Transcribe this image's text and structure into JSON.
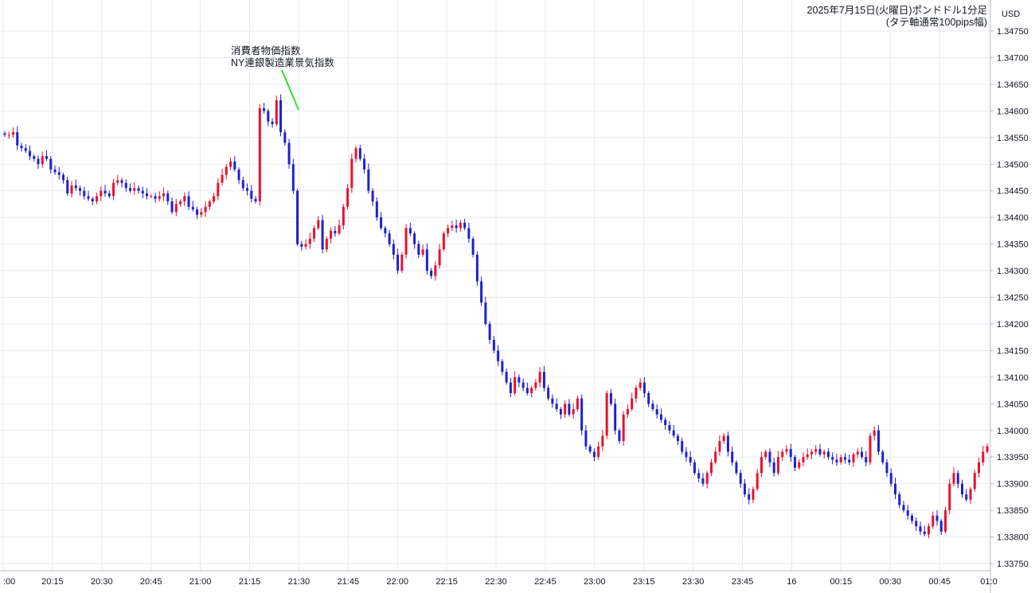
{
  "chart_data": {
    "type": "candlestick",
    "title_line1": "2025年7月15日(火曜日)ポンドドル1分足",
    "title_line2": "(タテ軸通常100pips幅)",
    "currency_label": "USD",
    "ylim": [
      1.3374,
      1.34775
    ],
    "y_ticks": [
      "1.34750",
      "1.34700",
      "1.34650",
      "1.34600",
      "1.34550",
      "1.34500",
      "1.34450",
      "1.34400",
      "1.34350",
      "1.34300",
      "1.34250",
      "1.34200",
      "1.34150",
      "1.34100",
      "1.34050",
      "1.34000",
      "1.33950",
      "1.33900",
      "1.33850",
      "1.33800",
      "1.33750"
    ],
    "x_ticks": [
      ":00",
      "20:15",
      "20:30",
      "20:45",
      "21:00",
      "21:15",
      "21:30",
      "21:45",
      "22:00",
      "22:15",
      "22:30",
      "22:45",
      "23:00",
      "23:15",
      "23:30",
      "23:45",
      "16",
      "00:15",
      "00:30",
      "00:45",
      "01:0"
    ],
    "annotation": {
      "line1": "消費者物価指数",
      "line2": "NY連銀製造業景気指数"
    },
    "up_color": "#e8112d",
    "down_color": "#1f1fd1",
    "close_path": [
      1.34555,
      1.34555,
      1.3456,
      1.34535,
      1.3453,
      1.34525,
      1.34515,
      1.3451,
      1.345,
      1.34515,
      1.3451,
      1.3449,
      1.34485,
      1.3448,
      1.3447,
      1.34445,
      1.3446,
      1.34455,
      1.3445,
      1.3444,
      1.34435,
      1.3443,
      1.3444,
      1.3445,
      1.34445,
      1.3444,
      1.34465,
      1.3447,
      1.34465,
      1.34455,
      1.3445,
      1.34455,
      1.3445,
      1.34445,
      1.3444,
      1.3444,
      1.34435,
      1.3444,
      1.34445,
      1.3443,
      1.3441,
      1.34425,
      1.3443,
      1.3444,
      1.3442,
      1.34415,
      1.34405,
      1.3441,
      1.3442,
      1.3443,
      1.3444,
      1.34465,
      1.3448,
      1.34495,
      1.34505,
      1.3449,
      1.3447,
      1.34455,
      1.3445,
      1.34435,
      1.3443,
      1.34605,
      1.346,
      1.3458,
      1.34575,
      1.3462,
      1.3456,
      1.3454,
      1.345,
      1.3445,
      1.3435,
      1.34345,
      1.3435,
      1.3436,
      1.3438,
      1.34395,
      1.3434,
      1.3436,
      1.34375,
      1.3437,
      1.34385,
      1.3442,
      1.34455,
      1.3451,
      1.3453,
      1.3451,
      1.3449,
      1.3445,
      1.3443,
      1.344,
      1.3438,
      1.3437,
      1.3435,
      1.3433,
      1.343,
      1.3433,
      1.3438,
      1.3437,
      1.3435,
      1.3433,
      1.3434,
      1.343,
      1.3429,
      1.3431,
      1.3434,
      1.3437,
      1.3438,
      1.34385,
      1.3438,
      1.3439,
      1.3438,
      1.3436,
      1.3433,
      1.3428,
      1.3424,
      1.342,
      1.3417,
      1.3415,
      1.3413,
      1.3411,
      1.3409,
      1.3407,
      1.341,
      1.3409,
      1.3408,
      1.3407,
      1.3408,
      1.3409,
      1.3411,
      1.3408,
      1.3406,
      1.3405,
      1.3404,
      1.3403,
      1.3405,
      1.3403,
      1.3404,
      1.3406,
      1.34,
      1.3397,
      1.3396,
      1.3395,
      1.3397,
      1.3399,
      1.3407,
      1.3405,
      1.34,
      1.3398,
      1.3403,
      1.3404,
      1.3406,
      1.3408,
      1.3409,
      1.3407,
      1.3405,
      1.3404,
      1.3403,
      1.3402,
      1.3401,
      1.34,
      1.3399,
      1.3398,
      1.3396,
      1.3395,
      1.3394,
      1.3392,
      1.3391,
      1.339,
      1.3392,
      1.3394,
      1.3396,
      1.3398,
      1.3399,
      1.3396,
      1.3394,
      1.3392,
      1.339,
      1.3388,
      1.3387,
      1.3389,
      1.3392,
      1.3395,
      1.3396,
      1.3394,
      1.3392,
      1.3395,
      1.3396,
      1.33965,
      1.3395,
      1.3393,
      1.3394,
      1.3395,
      1.33955,
      1.3396,
      1.33965,
      1.33955,
      1.3396,
      1.3395,
      1.33945,
      1.3394,
      1.3395,
      1.33945,
      1.3394,
      1.33955,
      1.3396,
      1.3395,
      1.3394,
      1.3399,
      1.34,
      1.3396,
      1.3394,
      1.3392,
      1.339,
      1.3388,
      1.3386,
      1.3385,
      1.3384,
      1.3383,
      1.3382,
      1.3381,
      1.33805,
      1.3382,
      1.3384,
      1.3383,
      1.3381,
      1.3385,
      1.339,
      1.3392,
      1.339,
      1.3388,
      1.3387,
      1.3389,
      1.3392,
      1.3394,
      1.3396,
      1.3397
    ]
  }
}
